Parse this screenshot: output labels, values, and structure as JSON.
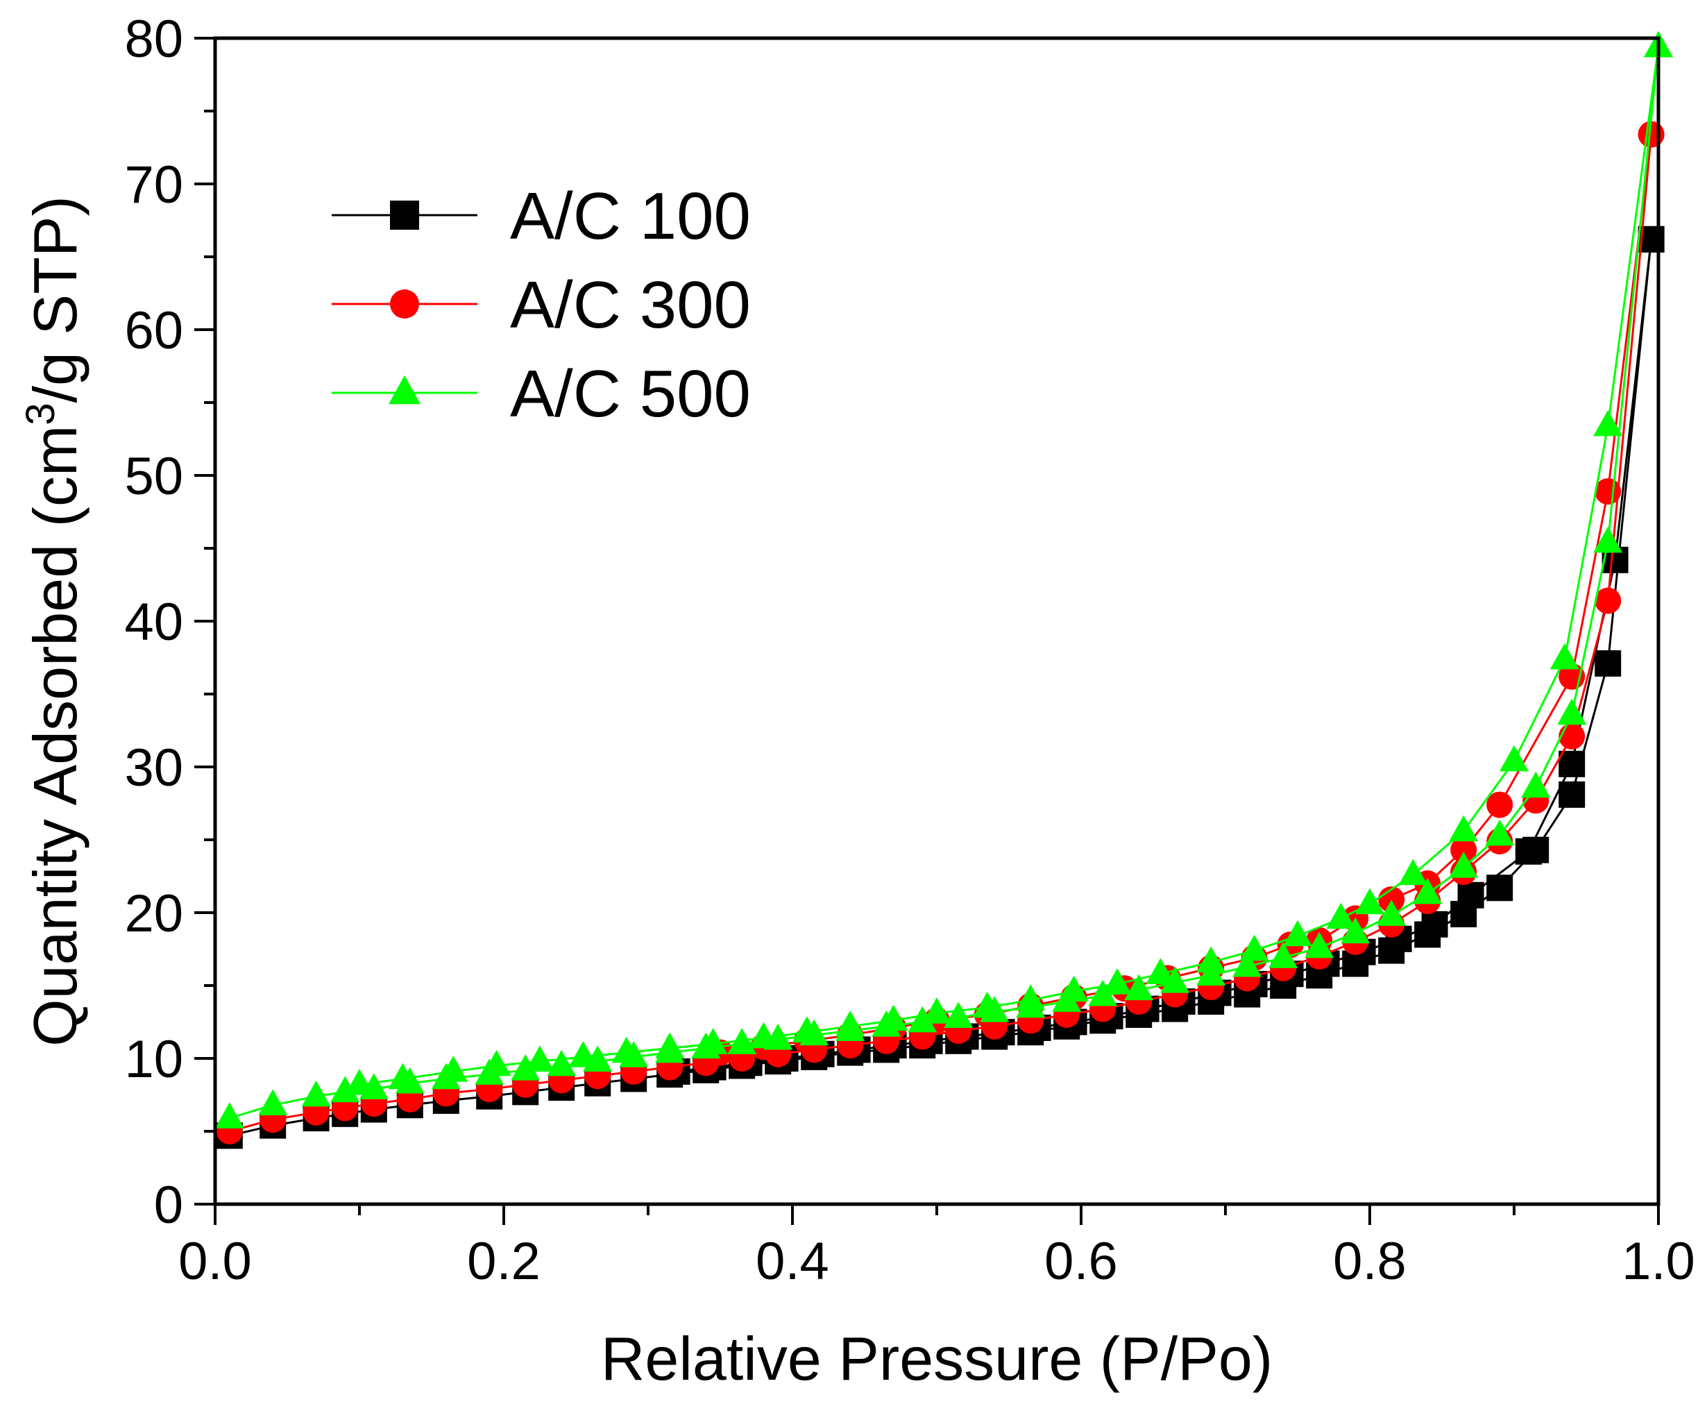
{
  "chart_data": {
    "type": "scatter",
    "title": "",
    "xlabel": "Relative Pressure (P/Po)",
    "ylabel_parts": [
      "Quantity Adsorbed (cm",
      "3",
      "/g STP)"
    ],
    "xlim": [
      0.0,
      1.0
    ],
    "ylim": [
      0,
      80
    ],
    "x_ticks": [
      "0.0",
      "0.2",
      "0.4",
      "0.6",
      "0.8",
      "1.0"
    ],
    "y_ticks": [
      "0",
      "10",
      "20",
      "30",
      "40",
      "50",
      "60",
      "70",
      "80"
    ],
    "grid": false,
    "legend_position": "top-left",
    "series": [
      {
        "name": "A/C 100",
        "color": "#000000",
        "marker": "square",
        "adsorption": {
          "x": [
            0.01,
            0.04,
            0.07,
            0.09,
            0.11,
            0.135,
            0.16,
            0.19,
            0.215,
            0.24,
            0.265,
            0.29,
            0.315,
            0.34,
            0.365,
            0.39,
            0.415,
            0.44,
            0.465,
            0.49,
            0.515,
            0.54,
            0.565,
            0.59,
            0.615,
            0.64,
            0.665,
            0.69,
            0.715,
            0.74,
            0.765,
            0.79,
            0.815,
            0.84,
            0.865,
            0.89,
            0.915,
            0.94,
            0.965,
            0.995
          ],
          "y": [
            4.7,
            5.4,
            5.9,
            6.2,
            6.5,
            6.8,
            7.1,
            7.4,
            7.7,
            8.0,
            8.3,
            8.6,
            8.9,
            9.2,
            9.5,
            9.8,
            10.1,
            10.4,
            10.6,
            10.9,
            11.2,
            11.5,
            11.8,
            12.2,
            12.6,
            13.0,
            13.4,
            13.9,
            14.4,
            15.0,
            15.7,
            16.5,
            17.4,
            18.5,
            19.9,
            21.7,
            24.3,
            28.1,
            37.1,
            66.2
          ]
        },
        "desorption": {
          "x": [
            0.995,
            0.97,
            0.94,
            0.91,
            0.87,
            0.845,
            0.82,
            0.795,
            0.77,
            0.745,
            0.72,
            0.695,
            0.67,
            0.645,
            0.62,
            0.595,
            0.57,
            0.545,
            0.52,
            0.495,
            0.47,
            0.445,
            0.42,
            0.395,
            0.37,
            0.345,
            0.32
          ],
          "y": [
            66.2,
            44.2,
            30.2,
            24.2,
            21.2,
            19.2,
            18.2,
            17.3,
            16.5,
            15.8,
            15.1,
            14.5,
            13.9,
            13.4,
            12.9,
            12.5,
            12.1,
            11.8,
            11.5,
            11.2,
            10.9,
            10.6,
            10.3,
            10.0,
            9.7,
            9.4,
            9.1
          ]
        }
      },
      {
        "name": "A/C 300",
        "color": "#ff0000",
        "marker": "circle",
        "adsorption": {
          "x": [
            0.01,
            0.04,
            0.07,
            0.09,
            0.11,
            0.135,
            0.16,
            0.19,
            0.215,
            0.24,
            0.265,
            0.29,
            0.315,
            0.34,
            0.365,
            0.39,
            0.415,
            0.44,
            0.465,
            0.49,
            0.515,
            0.54,
            0.565,
            0.59,
            0.615,
            0.64,
            0.665,
            0.69,
            0.715,
            0.74,
            0.765,
            0.79,
            0.815,
            0.84,
            0.865,
            0.89,
            0.915,
            0.94,
            0.965,
            0.995
          ],
          "y": [
            5.0,
            5.8,
            6.3,
            6.6,
            6.9,
            7.2,
            7.6,
            7.9,
            8.2,
            8.5,
            8.8,
            9.1,
            9.4,
            9.7,
            10.0,
            10.3,
            10.6,
            10.9,
            11.2,
            11.5,
            11.9,
            12.2,
            12.6,
            13.0,
            13.4,
            13.9,
            14.4,
            14.9,
            15.5,
            16.2,
            17.0,
            18.0,
            19.2,
            20.8,
            22.8,
            24.9,
            27.7,
            32.1,
            41.4,
            73.4
          ]
        },
        "desorption": {
          "x": [
            0.995,
            0.965,
            0.94,
            0.89,
            0.865,
            0.84,
            0.815,
            0.79,
            0.765,
            0.745,
            0.72,
            0.69,
            0.66,
            0.63,
            0.595,
            0.565,
            0.535,
            0.5,
            0.47,
            0.44,
            0.41,
            0.38,
            0.35
          ],
          "y": [
            73.4,
            48.9,
            36.2,
            27.4,
            24.3,
            22.0,
            20.9,
            19.6,
            18.1,
            17.8,
            16.9,
            16.2,
            15.5,
            14.8,
            14.2,
            13.6,
            13.0,
            12.6,
            12.1,
            11.6,
            11.2,
            10.8,
            10.4
          ]
        }
      },
      {
        "name": "A/C 500",
        "color": "#00ff00",
        "marker": "triangle",
        "adsorption": {
          "x": [
            0.01,
            0.04,
            0.07,
            0.09,
            0.11,
            0.135,
            0.16,
            0.19,
            0.215,
            0.24,
            0.265,
            0.29,
            0.315,
            0.34,
            0.365,
            0.39,
            0.415,
            0.44,
            0.465,
            0.49,
            0.515,
            0.54,
            0.565,
            0.59,
            0.615,
            0.64,
            0.665,
            0.69,
            0.715,
            0.74,
            0.765,
            0.79,
            0.815,
            0.84,
            0.865,
            0.89,
            0.915,
            0.94,
            0.965,
            1.0
          ],
          "y": [
            5.9,
            6.8,
            7.4,
            7.7,
            7.9,
            8.3,
            8.6,
            8.9,
            9.2,
            9.5,
            9.8,
            10.1,
            10.4,
            10.7,
            11.0,
            11.3,
            11.6,
            11.9,
            12.2,
            12.5,
            12.8,
            13.2,
            13.5,
            13.9,
            14.3,
            14.7,
            15.2,
            15.7,
            16.3,
            16.9,
            17.6,
            18.6,
            19.8,
            21.3,
            23.1,
            25.3,
            28.6,
            33.6,
            45.4,
            79.4
          ]
        },
        "desorption": {
          "x": [
            1.0,
            0.965,
            0.935,
            0.9,
            0.865,
            0.83,
            0.8,
            0.78,
            0.75,
            0.72,
            0.69,
            0.655,
            0.625,
            0.595,
            0.565,
            0.535,
            0.5,
            0.47,
            0.44,
            0.41,
            0.38,
            0.345,
            0.315,
            0.285,
            0.255,
            0.225,
            0.195,
            0.165,
            0.13,
            0.1
          ],
          "y": [
            79.4,
            53.4,
            37.4,
            30.4,
            25.6,
            22.6,
            20.6,
            19.6,
            18.4,
            17.4,
            16.6,
            15.8,
            15.1,
            14.6,
            14.0,
            13.5,
            13.1,
            12.6,
            12.2,
            11.8,
            11.4,
            11.0,
            10.7,
            10.4,
            10.1,
            9.8,
            9.5,
            9.1,
            8.6,
            8.2
          ]
        }
      }
    ]
  }
}
